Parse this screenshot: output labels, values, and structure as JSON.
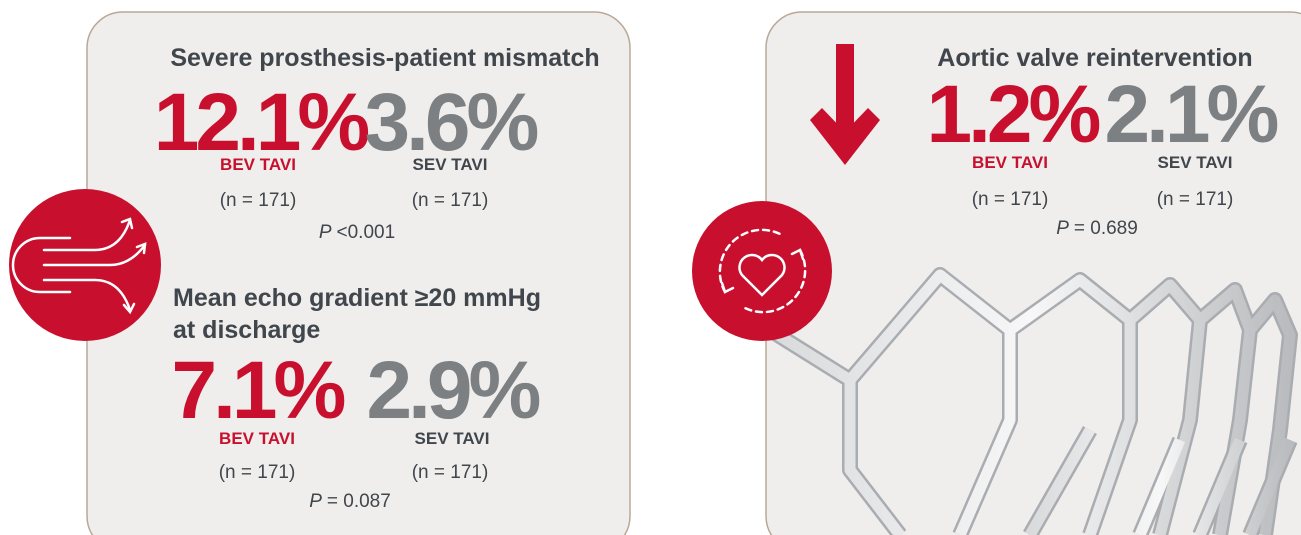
{
  "sections": [
    {
      "title": [
        "Severe prosthesis-patient mismatch"
      ],
      "stats": [
        {
          "value": "12.1%",
          "group": "BEV TAVI",
          "n": "(n = 171)"
        },
        {
          "value": "3.6%",
          "group": "SEV TAVI",
          "n": "(n = 171)"
        }
      ],
      "p": {
        "label": "P",
        "value": "<0.001"
      }
    },
    {
      "title": [
        "Mean echo gradient ≥20 mmHg",
        "at discharge"
      ],
      "stats": [
        {
          "value": "7.1%",
          "group": "BEV TAVI",
          "n": "(n = 171)"
        },
        {
          "value": "2.9%",
          "group": "SEV TAVI",
          "n": "(n = 171)"
        }
      ],
      "p": {
        "label": "P",
        "value": "= 0.087"
      }
    },
    {
      "title": [
        "Aortic valve reintervention"
      ],
      "stats": [
        {
          "value": "1.2%",
          "group": "BEV TAVI",
          "n": "(n = 171)"
        },
        {
          "value": "2.1%",
          "group": "SEV TAVI",
          "n": "(n = 171)"
        }
      ],
      "p": {
        "label": "P",
        "value": "= 0.689"
      }
    }
  ]
}
